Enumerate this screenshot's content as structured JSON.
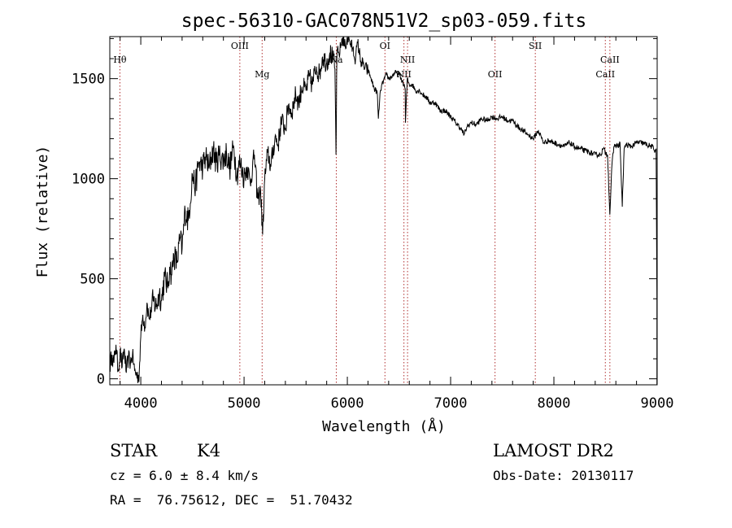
{
  "chart_data": {
    "type": "line",
    "title": "spec-56310-GAC078N51V2_sp03-059.fits",
    "xlabel": "Wavelength (Å)",
    "ylabel": "Flux (relative)",
    "xlim": [
      3700,
      9000
    ],
    "ylim": [
      -30,
      1710
    ],
    "x_ticks": [
      4000,
      5000,
      6000,
      7000,
      8000,
      9000
    ],
    "y_ticks": [
      0,
      500,
      1000,
      1500
    ],
    "grid": false,
    "series": [
      {
        "color": "#000000",
        "x": [
          3700,
          3720,
          3740,
          3760,
          3780,
          3800,
          3820,
          3840,
          3860,
          3880,
          3900,
          3920,
          3940,
          3960,
          3975,
          3985,
          4000,
          4020,
          4040,
          4060,
          4080,
          4100,
          4120,
          4150,
          4180,
          4200,
          4230,
          4260,
          4280,
          4300,
          4320,
          4350,
          4380,
          4400,
          4430,
          4460,
          4500,
          4530,
          4560,
          4600,
          4630,
          4660,
          4700,
          4730,
          4760,
          4800,
          4830,
          4860,
          4900,
          4930,
          4960,
          5000,
          5030,
          5060,
          5100,
          5130,
          5160,
          5180,
          5200,
          5230,
          5260,
          5300,
          5330,
          5360,
          5400,
          5430,
          5460,
          5500,
          5530,
          5560,
          5600,
          5630,
          5660,
          5700,
          5730,
          5760,
          5800,
          5830,
          5860,
          5880,
          5890,
          5900,
          5920,
          5950,
          5980,
          6000,
          6020,
          6050,
          6080,
          6100,
          6130,
          6160,
          6200,
          6230,
          6260,
          6290,
          6300,
          6320,
          6350,
          6380,
          6400,
          6430,
          6460,
          6500,
          6530,
          6560,
          6563,
          6580,
          6600,
          6630,
          6660,
          6700,
          6730,
          6760,
          6800,
          6850,
          6900,
          6950,
          7000,
          7050,
          7100,
          7130,
          7160,
          7200,
          7250,
          7300,
          7350,
          7400,
          7450,
          7500,
          7550,
          7600,
          7650,
          7700,
          7750,
          7800,
          7850,
          7900,
          7950,
          8000,
          8050,
          8100,
          8150,
          8200,
          8250,
          8300,
          8350,
          8400,
          8450,
          8480,
          8500,
          8520,
          8542,
          8560,
          8580,
          8600,
          8620,
          8640,
          8662,
          8680,
          8700,
          8750,
          8800,
          8850,
          8900,
          8950,
          8980,
          8990,
          8998
        ],
        "y": [
          60,
          120,
          80,
          170,
          40,
          140,
          60,
          150,
          30,
          110,
          80,
          120,
          40,
          20,
          10,
          30,
          210,
          320,
          260,
          380,
          300,
          340,
          390,
          360,
          430,
          390,
          510,
          460,
          560,
          520,
          620,
          580,
          700,
          650,
          840,
          790,
          1020,
          960,
          1080,
          1060,
          1110,
          1050,
          1150,
          1080,
          1120,
          1090,
          1130,
          1050,
          1160,
          1020,
          1080,
          1010,
          1060,
          980,
          1120,
          900,
          940,
          720,
          1000,
          1130,
          1060,
          1210,
          1170,
          1290,
          1250,
          1370,
          1330,
          1420,
          1380,
          1460,
          1440,
          1510,
          1470,
          1560,
          1520,
          1610,
          1580,
          1630,
          1600,
          1550,
          1120,
          1640,
          1620,
          1700,
          1660,
          1710,
          1690,
          1650,
          1600,
          1680,
          1590,
          1560,
          1540,
          1500,
          1450,
          1430,
          1300,
          1440,
          1490,
          1520,
          1500,
          1510,
          1530,
          1520,
          1490,
          1450,
          1280,
          1500,
          1470,
          1470,
          1440,
          1440,
          1420,
          1410,
          1380,
          1380,
          1340,
          1340,
          1310,
          1280,
          1250,
          1220,
          1260,
          1280,
          1270,
          1300,
          1290,
          1310,
          1300,
          1310,
          1290,
          1290,
          1260,
          1240,
          1220,
          1200,
          1240,
          1180,
          1190,
          1180,
          1170,
          1160,
          1180,
          1160,
          1150,
          1140,
          1130,
          1120,
          1120,
          1150,
          1130,
          1120,
          820,
          1050,
          1160,
          1170,
          1160,
          1180,
          860,
          1150,
          1170,
          1160,
          1180,
          1180,
          1170,
          1160,
          1140,
          1150,
          380
        ]
      }
    ],
    "annotations": [
      {
        "label": "Hθ",
        "x": 3798,
        "row": 1
      },
      {
        "label": "OIII",
        "x": 4959,
        "row": 0
      },
      {
        "label": "Mg",
        "x": 5175,
        "row": 2
      },
      {
        "label": "Na",
        "x": 5893,
        "row": 1
      },
      {
        "label": "OI",
        "x": 6364,
        "row": 0
      },
      {
        "label": "NII",
        "x": 6548,
        "row": 2
      },
      {
        "label": "NII",
        "x": 6583,
        "row": 1
      },
      {
        "label": "OII",
        "x": 7430,
        "row": 2
      },
      {
        "label": "SII",
        "x": 7820,
        "row": 0
      },
      {
        "label": "CaII",
        "x": 8498,
        "row": 2
      },
      {
        "label": "CaII",
        "x": 8542,
        "row": 1
      }
    ]
  },
  "info": {
    "star_label": "STAR",
    "subclass": "K4",
    "survey": "LAMOST DR2",
    "cz_line": "cz = 6.0 ± 8.4 km/s",
    "obs_date_line": "Obs-Date: 20130117",
    "radec_line": "RA =  76.75612, DEC =  51.70432"
  }
}
